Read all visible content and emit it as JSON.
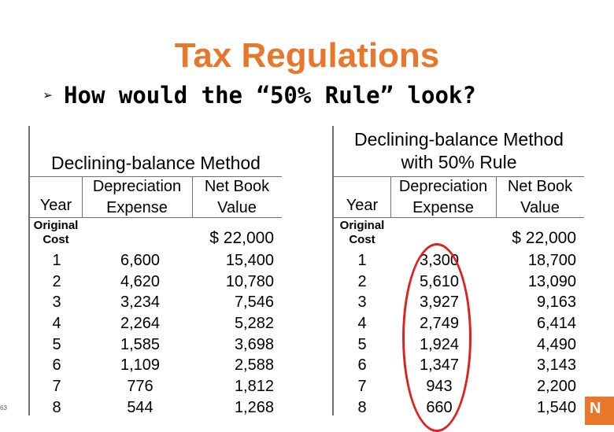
{
  "slide": {
    "title": "Tax Regulations",
    "bullet": "How would the “50% Rule” look?",
    "page_number": "63",
    "logo_fragment": "N"
  },
  "left_table": {
    "caption": "Declining-balance Method",
    "headers": {
      "year": "Year",
      "depreciation_l1": "Depreciation",
      "depreciation_l2": "Expense",
      "nbv_l1": "Net Book",
      "nbv_l2": "Value"
    },
    "original_cost_label_l1": "Original",
    "original_cost_label_l2": "Cost",
    "original_cost": "$ 22,000",
    "rows": [
      {
        "year": "1",
        "expense": "6,600",
        "value": "15,400"
      },
      {
        "year": "2",
        "expense": "4,620",
        "value": "10,780"
      },
      {
        "year": "3",
        "expense": "3,234",
        "value": "7,546"
      },
      {
        "year": "4",
        "expense": "2,264",
        "value": "5,282"
      },
      {
        "year": "5",
        "expense": "1,585",
        "value": "3,698"
      },
      {
        "year": "6",
        "expense": "1,109",
        "value": "2,588"
      },
      {
        "year": "7",
        "expense": "776",
        "value": "1,812"
      },
      {
        "year": "8",
        "expense": "544",
        "value": "1,268"
      }
    ]
  },
  "right_table": {
    "caption_l1": "Declining-balance Method",
    "caption_l2": "with 50% Rule",
    "headers": {
      "year": "Year",
      "depreciation_l1": "Depreciation",
      "depreciation_l2": "Expense",
      "nbv_l1": "Net Book",
      "nbv_l2": "Value"
    },
    "original_cost_label_l1": "Original",
    "original_cost_label_l2": "Cost",
    "original_cost": "$ 22,000",
    "rows": [
      {
        "year": "1",
        "expense": "3,300",
        "value": "18,700"
      },
      {
        "year": "2",
        "expense": "5,610",
        "value": "13,090"
      },
      {
        "year": "3",
        "expense": "3,927",
        "value": "9,163"
      },
      {
        "year": "4",
        "expense": "2,749",
        "value": "6,414"
      },
      {
        "year": "5",
        "expense": "1,924",
        "value": "4,490"
      },
      {
        "year": "6",
        "expense": "1,347",
        "value": "3,143"
      },
      {
        "year": "7",
        "expense": "943",
        "value": "2,200"
      },
      {
        "year": "8",
        "expense": "660",
        "value": "1,540"
      }
    ]
  },
  "colors": {
    "title": "#e8762b",
    "highlight": "#e02020",
    "rule": "#6f6f6f"
  }
}
